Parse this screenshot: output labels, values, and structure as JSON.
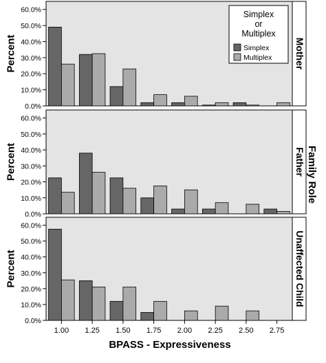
{
  "chart_data": {
    "type": "bar",
    "xlabel": "BPASS - Expressiveness",
    "ylabel": "Percent",
    "facet_label": "Family Role",
    "categories": [
      "1.00",
      "1.25",
      "1.50",
      "1.75",
      "2.00",
      "2.25",
      "2.50",
      "2.75"
    ],
    "yticks": [
      "0.0%",
      "10.0%",
      "20.0%",
      "30.0%",
      "40.0%",
      "50.0%",
      "60.0%"
    ],
    "ylim": [
      0,
      65
    ],
    "grid": false,
    "legend": {
      "title": "Simplex or Multiplex",
      "title_lines": [
        "Simplex",
        "or",
        "Multiplex"
      ],
      "placement": "top-right",
      "entries": [
        "Simplex",
        "Multiplex"
      ]
    },
    "colors": {
      "Simplex": "#666666",
      "Multiplex": "#aaaaaa",
      "panel_bg": "#e4e4e4"
    },
    "panels": [
      {
        "label": "Mother",
        "series": [
          {
            "name": "Simplex",
            "values": [
              49,
              32,
              12,
              2,
              2,
              0.5,
              2,
              0
            ]
          },
          {
            "name": "Multiplex",
            "values": [
              26,
              32.5,
              23,
              7,
              6,
              2,
              0.5,
              2
            ]
          }
        ]
      },
      {
        "label": "Father",
        "series": [
          {
            "name": "Simplex",
            "values": [
              22.5,
              38,
              22.5,
              10,
              3,
              3,
              0,
              3
            ]
          },
          {
            "name": "Multiplex",
            "values": [
              13.5,
              26,
              16,
              17.5,
              15,
              7,
              6,
              1.5
            ]
          }
        ]
      },
      {
        "label": "Unaffected Child",
        "series": [
          {
            "name": "Simplex",
            "values": [
              57.5,
              25,
              12,
              5,
              0,
              0,
              0,
              0
            ]
          },
          {
            "name": "Multiplex",
            "values": [
              25.5,
              21,
              21,
              12,
              6,
              9,
              6,
              0
            ]
          }
        ]
      }
    ]
  }
}
